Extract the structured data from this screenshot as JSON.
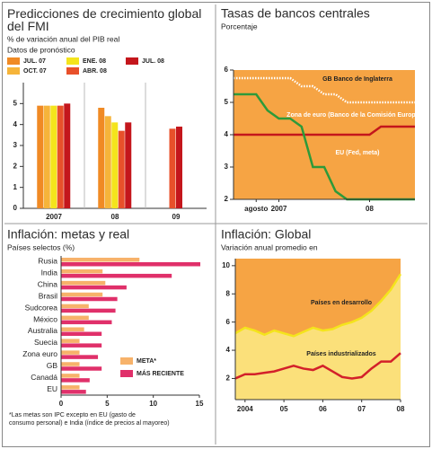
{
  "chart_data": [
    {
      "type": "bar",
      "title": "Predicciones de crecimiento global del FMI",
      "subtitle": "% de variación anual del PIB real",
      "note": "Datos de pronóstico",
      "categories": [
        "2007",
        "08",
        "09"
      ],
      "series": [
        {
          "name": "JUL. 07",
          "color": "#f08a24",
          "values": [
            4.9,
            4.8,
            null
          ]
        },
        {
          "name": "OCT. 07",
          "color": "#f6b43a",
          "values": [
            4.9,
            4.4,
            null
          ]
        },
        {
          "name": "ENE. 08",
          "color": "#f4e41c",
          "values": [
            4.9,
            4.1,
            null
          ]
        },
        {
          "name": "ABR. 08",
          "color": "#e8502a",
          "values": [
            4.9,
            3.7,
            3.8
          ]
        },
        {
          "name": "JUL. 08",
          "color": "#c4161c",
          "values": [
            5.0,
            4.1,
            3.9
          ]
        }
      ],
      "ylim": [
        0,
        6
      ],
      "yticks": [
        0,
        1,
        2,
        3,
        4,
        5
      ]
    },
    {
      "type": "line",
      "title": "Tasas de bancos centrales",
      "subtitle": "Porcentaje",
      "background": "#f6a444",
      "categories": [
        null,
        null,
        "agosto",
        null,
        "2007",
        null,
        null,
        null,
        null,
        null,
        null,
        null,
        "08",
        null,
        null,
        null,
        null
      ],
      "series": [
        {
          "name": "GB Banco de Inglaterra",
          "color": "#ffffff",
          "dash": true,
          "values": [
            5.75,
            5.75,
            5.75,
            5.75,
            5.75,
            5.75,
            5.5,
            5.5,
            5.25,
            5.25,
            5.0,
            5.0,
            5.0,
            5.0,
            5.0,
            5.0,
            5.0
          ]
        },
        {
          "name": "Zona de euro (Banco de la Comisión Europea)",
          "color": "#c4161c",
          "values": [
            4.0,
            4.0,
            4.0,
            4.0,
            4.0,
            4.0,
            4.0,
            4.0,
            4.0,
            4.0,
            4.0,
            4.0,
            4.0,
            4.25,
            4.25,
            4.25,
            4.25
          ]
        },
        {
          "name": "EU (Fed, meta)",
          "color": "#2e9a3a",
          "values": [
            5.25,
            5.25,
            5.25,
            4.75,
            4.5,
            4.5,
            4.25,
            3.0,
            3.0,
            2.25,
            2.0,
            2.0,
            2.0,
            2.0,
            2.0,
            2.0,
            2.0
          ]
        }
      ],
      "ylim": [
        2,
        6
      ],
      "yticks": [
        2,
        3,
        4,
        5,
        6
      ]
    },
    {
      "type": "hbar",
      "title": "Inflación: metas y real",
      "subtitle": "Países selectos (%)",
      "note": "*Las metas son IPC excepto en EU (gasto de consumo personal) e India (índice de precios al mayoreo)",
      "categories": [
        "Rusia",
        "India",
        "China",
        "Brasil",
        "Sudcorea",
        "México",
        "Australia",
        "Suecia",
        "Zona euro",
        "GB",
        "Canadá",
        "EU"
      ],
      "series": [
        {
          "name": "META*",
          "color": "#f7b26a",
          "values": [
            8.5,
            4.5,
            4.8,
            4.5,
            3.0,
            3.0,
            2.5,
            2.0,
            2.0,
            2.0,
            2.0,
            2.0
          ]
        },
        {
          "name": "MÁS RECIENTE",
          "color": "#e0306a",
          "values": [
            15.1,
            12.0,
            7.1,
            6.1,
            5.9,
            5.5,
            4.4,
            4.4,
            4.0,
            4.4,
            3.1,
            2.7
          ]
        }
      ],
      "xlim": [
        0,
        15
      ],
      "xticks": [
        0,
        5,
        10,
        15
      ]
    },
    {
      "type": "line",
      "title": "Inflación: Global",
      "subtitle": "Variación anual promedio en",
      "background": "#f6a444",
      "categories": [
        null,
        "2004",
        null,
        null,
        null,
        "05",
        null,
        null,
        null,
        "06",
        null,
        null,
        null,
        "07",
        null,
        null,
        null,
        "08"
      ],
      "series": [
        {
          "name": "Países en desarrollo",
          "color": "#f4e41c",
          "fill": "#fbe07a",
          "values": [
            5.2,
            5.6,
            5.4,
            5.1,
            5.4,
            5.2,
            5.0,
            5.3,
            5.6,
            5.4,
            5.5,
            5.8,
            6.0,
            6.3,
            6.8,
            7.5,
            8.3,
            9.4
          ]
        },
        {
          "name": "Países industrializados",
          "color": "#d3202a",
          "values": [
            2.0,
            2.3,
            2.3,
            2.4,
            2.5,
            2.7,
            2.9,
            2.7,
            2.6,
            2.9,
            2.5,
            2.1,
            2.0,
            2.1,
            2.7,
            3.2,
            3.2,
            3.8
          ]
        }
      ],
      "ylim": [
        0.5,
        10.5
      ],
      "yticks": [
        2,
        4,
        6,
        8,
        10
      ]
    }
  ]
}
